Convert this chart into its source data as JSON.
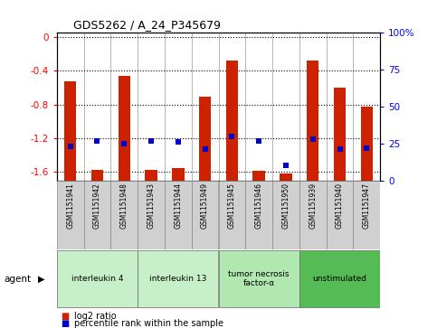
{
  "title": "GDS5262 / A_24_P345679",
  "samples": [
    "GSM1151941",
    "GSM1151942",
    "GSM1151948",
    "GSM1151943",
    "GSM1151944",
    "GSM1151949",
    "GSM1151945",
    "GSM1151946",
    "GSM1151950",
    "GSM1151939",
    "GSM1151940",
    "GSM1151947"
  ],
  "log2_ratio": [
    -0.52,
    -1.57,
    -0.46,
    -1.58,
    -1.55,
    -0.71,
    -0.28,
    -1.59,
    -1.62,
    -0.28,
    -0.6,
    -0.83
  ],
  "percentile": [
    23,
    27,
    25,
    27,
    26,
    21,
    30,
    27,
    10,
    28,
    21,
    22
  ],
  "agents": [
    {
      "label": "interleukin 4",
      "start": 0,
      "end": 3,
      "color": "#c8f0c8"
    },
    {
      "label": "interleukin 13",
      "start": 3,
      "end": 6,
      "color": "#c8f0c8"
    },
    {
      "label": "tumor necrosis\nfactor-α",
      "start": 6,
      "end": 9,
      "color": "#b0e8b0"
    },
    {
      "label": "unstimulated",
      "start": 9,
      "end": 12,
      "color": "#55bb55"
    }
  ],
  "ylim_left": [
    -1.7,
    0.05
  ],
  "ylim_right": [
    0,
    100
  ],
  "left_ticks": [
    0,
    -0.4,
    -0.8,
    -1.2,
    -1.6
  ],
  "right_ticks": [
    0,
    25,
    50,
    75,
    100
  ],
  "bar_color": "#cc2200",
  "dot_color": "#0000cc",
  "bg_color": "#ffffff",
  "plot_bg": "#ffffff",
  "sample_bg": "#d0d0d0"
}
